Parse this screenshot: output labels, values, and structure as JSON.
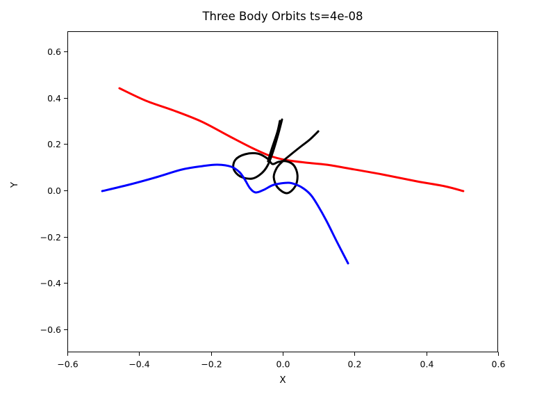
{
  "chart_data": {
    "type": "line",
    "title": "Three Body Orbits ts=4e-08",
    "xlabel": "X",
    "ylabel": "Y",
    "xlim": [
      -0.6,
      0.6
    ],
    "ylim": [
      -0.699,
      0.687
    ],
    "grid": false,
    "legend": false,
    "background_color": "#ffffff",
    "axis_color": "#000000",
    "xticks": {
      "values": [
        -0.6,
        -0.4,
        -0.2,
        0.0,
        0.2,
        0.4,
        0.6
      ],
      "labels": [
        "−0.6",
        "−0.4",
        "−0.2",
        "0.0",
        "0.2",
        "0.4",
        "0.6"
      ]
    },
    "yticks": {
      "values": [
        -0.6,
        -0.4,
        -0.2,
        0.0,
        0.2,
        0.4,
        0.6
      ],
      "labels": [
        "−0.6",
        "−0.4",
        "−0.2",
        "0.0",
        "0.2",
        "0.4",
        "0.6"
      ]
    },
    "series": [
      {
        "name": "body-red",
        "color": "#ff0000",
        "linewidth": 3,
        "points": [
          [
            -0.455,
            0.441
          ],
          [
            -0.381,
            0.387
          ],
          [
            -0.304,
            0.345
          ],
          [
            -0.226,
            0.297
          ],
          [
            -0.149,
            0.234
          ],
          [
            -0.085,
            0.183
          ],
          [
            -0.037,
            0.15
          ],
          [
            0.006,
            0.132
          ],
          [
            0.064,
            0.12
          ],
          [
            0.122,
            0.111
          ],
          [
            0.19,
            0.093
          ],
          [
            0.277,
            0.069
          ],
          [
            0.374,
            0.039
          ],
          [
            0.451,
            0.018
          ],
          [
            0.503,
            -0.003
          ]
        ]
      },
      {
        "name": "body-black-return-strand",
        "color": "#000000",
        "linewidth": 3,
        "points": [
          [
            -0.008,
            0.3
          ],
          [
            -0.015,
            0.252
          ],
          [
            -0.031,
            0.177
          ],
          [
            -0.041,
            0.126
          ]
        ]
      },
      {
        "name": "body-black",
        "color": "#000000",
        "linewidth": 3,
        "points": [
          [
            -0.002,
            0.306
          ],
          [
            -0.012,
            0.246
          ],
          [
            -0.027,
            0.168
          ],
          [
            -0.041,
            0.111
          ],
          [
            -0.058,
            0.075
          ],
          [
            -0.085,
            0.051
          ],
          [
            -0.118,
            0.06
          ],
          [
            -0.137,
            0.093
          ],
          [
            -0.132,
            0.132
          ],
          [
            -0.105,
            0.156
          ],
          [
            -0.07,
            0.159
          ],
          [
            -0.043,
            0.138
          ],
          [
            -0.029,
            0.114
          ],
          [
            -0.012,
            0.123
          ],
          [
            0.01,
            0.126
          ],
          [
            0.031,
            0.108
          ],
          [
            0.041,
            0.066
          ],
          [
            0.035,
            0.018
          ],
          [
            0.012,
            -0.012
          ],
          [
            -0.014,
            0.012
          ],
          [
            -0.025,
            0.057
          ],
          [
            -0.017,
            0.096
          ],
          [
            -0.002,
            0.123
          ],
          [
            0.021,
            0.153
          ],
          [
            0.05,
            0.189
          ],
          [
            0.075,
            0.219
          ],
          [
            0.099,
            0.255
          ]
        ]
      },
      {
        "name": "body-blue",
        "color": "#0000ff",
        "linewidth": 3,
        "points": [
          [
            -0.503,
            -0.003
          ],
          [
            -0.43,
            0.024
          ],
          [
            -0.352,
            0.057
          ],
          [
            -0.281,
            0.09
          ],
          [
            -0.223,
            0.105
          ],
          [
            -0.182,
            0.111
          ],
          [
            -0.143,
            0.102
          ],
          [
            -0.12,
            0.078
          ],
          [
            -0.105,
            0.045
          ],
          [
            -0.091,
            0.009
          ],
          [
            -0.075,
            -0.009
          ],
          [
            -0.052,
            0.003
          ],
          [
            -0.025,
            0.024
          ],
          [
            0.015,
            0.033
          ],
          [
            0.039,
            0.024
          ],
          [
            0.06,
            0.006
          ],
          [
            0.079,
            -0.021
          ],
          [
            0.097,
            -0.063
          ],
          [
            0.122,
            -0.132
          ],
          [
            0.151,
            -0.222
          ],
          [
            0.182,
            -0.315
          ]
        ]
      }
    ]
  }
}
